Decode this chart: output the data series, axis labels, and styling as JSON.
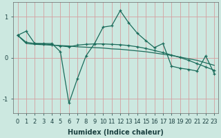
{
  "xlabel": "Humidex (Indice chaleur)",
  "bg_color": "#cce8e0",
  "line_color": "#1a6b5a",
  "grid_color": "#d4a0a0",
  "xlim": [
    -0.5,
    23.5
  ],
  "ylim": [
    -1.35,
    1.35
  ],
  "xticks": [
    0,
    1,
    2,
    3,
    4,
    5,
    6,
    7,
    8,
    9,
    10,
    11,
    12,
    13,
    14,
    15,
    16,
    17,
    18,
    19,
    20,
    21,
    22,
    23
  ],
  "yticks": [
    -1,
    0,
    1
  ],
  "main_x": [
    0,
    1,
    2,
    3,
    4,
    5,
    6,
    7,
    8,
    9,
    10,
    11,
    12,
    13,
    14,
    15,
    16,
    17,
    18,
    19,
    20,
    21,
    22,
    23
  ],
  "main_y": [
    0.55,
    0.65,
    0.35,
    0.35,
    0.35,
    0.15,
    -1.1,
    -0.5,
    0.05,
    0.35,
    0.75,
    0.78,
    1.15,
    0.85,
    0.6,
    0.42,
    0.25,
    0.35,
    -0.2,
    -0.25,
    -0.28,
    -0.32,
    0.05,
    -0.38
  ],
  "line2_x": [
    0,
    1,
    2,
    3,
    4,
    5,
    6,
    7,
    8,
    9,
    10,
    11,
    12,
    13,
    14,
    15,
    16,
    17,
    18,
    19,
    20,
    21,
    22,
    23
  ],
  "line2_y": [
    0.55,
    0.35,
    0.33,
    0.32,
    0.31,
    0.3,
    0.29,
    0.27,
    0.26,
    0.25,
    0.24,
    0.22,
    0.21,
    0.19,
    0.17,
    0.15,
    0.12,
    0.09,
    0.06,
    0.02,
    -0.02,
    -0.06,
    -0.12,
    -0.18
  ],
  "line3_x": [
    0,
    1,
    2,
    3,
    4,
    5,
    6,
    7,
    8,
    9,
    10,
    11,
    12,
    13,
    14,
    15,
    16,
    17,
    18,
    19,
    20,
    21,
    22,
    23
  ],
  "line3_y": [
    0.55,
    0.38,
    0.35,
    0.34,
    0.32,
    0.29,
    0.27,
    0.31,
    0.33,
    0.34,
    0.34,
    0.33,
    0.32,
    0.3,
    0.27,
    0.23,
    0.18,
    0.13,
    0.07,
    0.01,
    -0.06,
    -0.14,
    -0.22,
    -0.3
  ]
}
